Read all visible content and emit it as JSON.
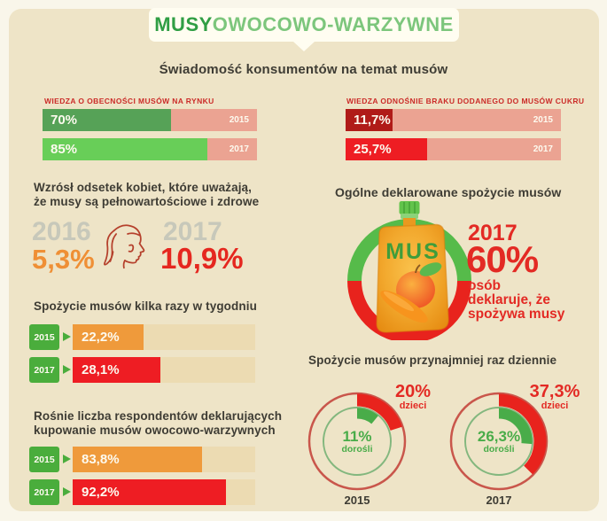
{
  "header": {
    "title_bold": "MUSY",
    "title_light": "OWOCOWO-WARZYWNE"
  },
  "awareness": {
    "heading": "Świadomość konsumentów na temat musów",
    "charts": [
      {
        "label": "WIEDZA O OBECNOŚCI MUSÓW NA RYNKU",
        "bars": [
          {
            "value": "70%",
            "year": "2015",
            "fill_display": 60
          },
          {
            "value": "85%",
            "year": "2017",
            "fill_display": 77
          }
        ]
      },
      {
        "label": "WIEDZA ODNOŚNIE BRAKU DODANEGO DO MUSÓW CUKRU",
        "bars": [
          {
            "value": "11,7%",
            "year": "2015",
            "fill_display": 22
          },
          {
            "value": "25,7%",
            "year": "2017",
            "fill_display": 38
          }
        ]
      }
    ]
  },
  "women": {
    "heading_line1": "Wzrósł odsetek kobiet, które uważają,",
    "heading_line2": "że musy są pełnowartościowe i zdrowe",
    "year_left": "2016",
    "value_left": "5,3%",
    "year_right": "2017",
    "value_right": "10,9%"
  },
  "weekly": {
    "heading": "Spożycie musów kilka razy w tygodniu",
    "bars": [
      {
        "year": "2015",
        "value": "22,2%",
        "fill_display": 39
      },
      {
        "year": "2017",
        "value": "28,1%",
        "fill_display": 48
      }
    ]
  },
  "buying": {
    "heading_line1": "Rośnie liczba respondentów deklarujących",
    "heading_line2": "kupowanie musów owocowo-warzywnych",
    "bars": [
      {
        "year": "2015",
        "value": "83,8%",
        "fill_display": 71
      },
      {
        "year": "2017",
        "value": "92,2%",
        "fill_display": 84
      }
    ]
  },
  "overall": {
    "heading": "Ogólne deklarowane spożycie musów",
    "pouch_label": "MUS",
    "year": "2017",
    "value": "60%",
    "line1": "osób",
    "line2": "deklaruje, że",
    "line3": "spożywa musy"
  },
  "daily": {
    "heading": "Spożycie musów przynajmniej raz dziennie",
    "donuts": [
      {
        "year": "2015",
        "children_pct": 20,
        "children_label": "20%",
        "children_caption": "dzieci",
        "adults_pct": 11,
        "adults_label": "11%",
        "adults_caption": "dorośli"
      },
      {
        "year": "2017",
        "children_pct": 37.3,
        "children_label": "37,3%",
        "children_caption": "dzieci",
        "adults_pct": 26.3,
        "adults_label": "26,3%",
        "adults_caption": "dorośli"
      }
    ]
  },
  "colors": {
    "brand_green": "#2f9e44",
    "light_green": "#7cc67c",
    "bar_green_2015": "#56a257",
    "bar_green_2017": "#68ce58",
    "salmon": "#eba392",
    "dark_red": "#b01b18",
    "red": "#ee1d23",
    "orange": "#ef9a3b",
    "track_tan": "#ecdbb2",
    "tag_green": "#4aad3c",
    "gray_year": "#c7c8ba",
    "text_dark": "#3e3c34",
    "label_red": "#cb2b28"
  },
  "chart_data": [
    {
      "type": "bar",
      "title": "WIEDZA O OBECNOŚCI MUSÓW NA RYNKU",
      "categories": [
        "2015",
        "2017"
      ],
      "values": [
        70,
        85
      ],
      "ylabel": "%",
      "ylim": [
        0,
        100
      ],
      "legend_position": "none"
    },
    {
      "type": "bar",
      "title": "WIEDZA ODNOŚNIE BRAKU DODANEGO DO MUSÓW CUKRU",
      "categories": [
        "2015",
        "2017"
      ],
      "values": [
        11.7,
        25.7
      ],
      "ylabel": "%",
      "ylim": [
        0,
        100
      ],
      "legend_position": "none"
    },
    {
      "type": "bar",
      "title": "Wzrósł odsetek kobiet, które uważają, że musy są pełnowartościowe i zdrowe",
      "categories": [
        "2016",
        "2017"
      ],
      "values": [
        5.3,
        10.9
      ],
      "ylabel": "%",
      "ylim": [
        0,
        100
      ],
      "legend_position": "none"
    },
    {
      "type": "bar",
      "title": "Spożycie musów kilka razy w tygodniu",
      "categories": [
        "2015",
        "2017"
      ],
      "values": [
        22.2,
        28.1
      ],
      "ylabel": "%",
      "ylim": [
        0,
        100
      ],
      "legend_position": "none"
    },
    {
      "type": "bar",
      "title": "Rośnie liczba respondentów deklarujących kupowanie musów owocowo-warzywnych",
      "categories": [
        "2015",
        "2017"
      ],
      "values": [
        83.8,
        92.2
      ],
      "ylabel": "%",
      "ylim": [
        0,
        100
      ],
      "legend_position": "none"
    },
    {
      "type": "pie",
      "title": "Ogólne deklarowane spożycie musów",
      "categories": [
        "2017 – osób deklaruje, że spożywa musy"
      ],
      "values": [
        60
      ],
      "ylabel": "%"
    },
    {
      "type": "pie",
      "title": "Spożycie musów przynajmniej raz dziennie",
      "categories": [
        "2015",
        "2017"
      ],
      "series": [
        {
          "name": "dzieci",
          "values": [
            20,
            37.3
          ]
        },
        {
          "name": "dorośli",
          "values": [
            11,
            26.3
          ]
        }
      ],
      "ylabel": "%"
    }
  ]
}
